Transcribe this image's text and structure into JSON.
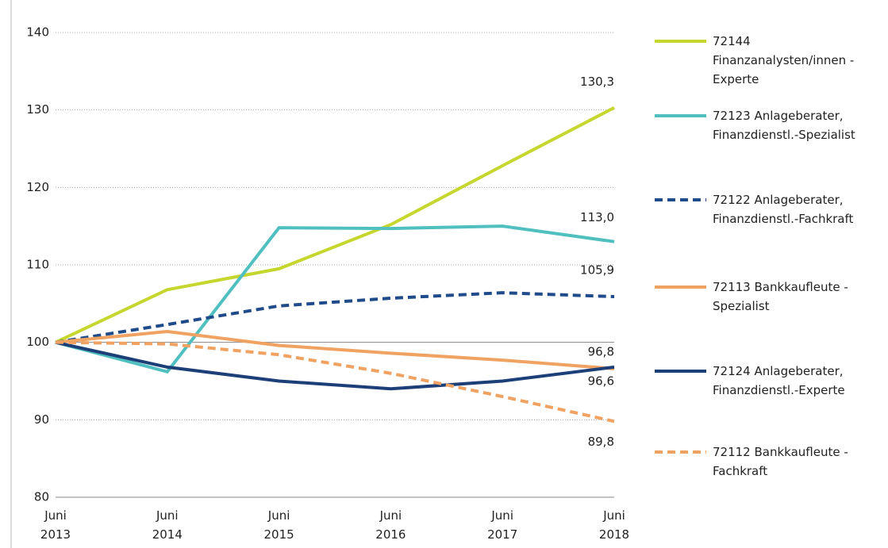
{
  "chart_data": {
    "type": "line",
    "categories": [
      "Juni 2013",
      "Juni 2014",
      "Juni 2015",
      "Juni 2016",
      "Juni 2017",
      "Juni 2018"
    ],
    "ylim": [
      80,
      140
    ],
    "yticks": [
      80,
      90,
      100,
      110,
      120,
      130,
      140
    ],
    "grid": true,
    "baseline": 100,
    "legend": "right",
    "series": [
      {
        "name": "72144 Finanzanalysten/innen - Experte",
        "color": "#c5d72f",
        "dashed": false,
        "values": [
          100,
          106.8,
          109.5,
          115.2,
          122.8,
          130.3
        ],
        "value_labels": [
          null,
          null,
          null,
          null,
          null,
          "130,3"
        ]
      },
      {
        "name": "72123 Anlageberater, Finanzdienstl.-Spezialist",
        "color": "#4fbfc0",
        "dashed": false,
        "values": [
          100,
          96.2,
          114.8,
          114.7,
          115.0,
          113.0
        ],
        "value_labels": [
          null,
          null,
          null,
          null,
          null,
          "113,0"
        ]
      },
      {
        "name": "72122 Anlageberater, Finanzdienstl.-Fachkraft",
        "color": "#1f4b8a",
        "dashed": true,
        "values": [
          100,
          102.3,
          104.7,
          105.7,
          106.4,
          105.9
        ],
        "value_labels": [
          null,
          null,
          null,
          null,
          null,
          "105,9"
        ]
      },
      {
        "name": "72113 Bankkaufleute - Spezialist",
        "color": "#f0a262",
        "dashed": false,
        "values": [
          100,
          101.4,
          99.6,
          98.6,
          97.7,
          96.6
        ],
        "value_labels": [
          null,
          null,
          null,
          null,
          null,
          "96,6"
        ]
      },
      {
        "name": "72124 Anlageberater, Finanzdienstl.-Experte",
        "color": "#1c3f78",
        "dashed": false,
        "values": [
          100,
          96.8,
          95.0,
          94.0,
          95.0,
          96.8
        ],
        "value_labels": [
          null,
          null,
          null,
          null,
          null,
          "96,8"
        ]
      },
      {
        "name": "72112 Bankkaufleute - Fachkraft",
        "color": "#f0a262",
        "dashed": true,
        "values": [
          100,
          99.8,
          98.4,
          96.0,
          93.0,
          89.8
        ],
        "value_labels": [
          null,
          null,
          null,
          null,
          null,
          "89,8"
        ]
      }
    ]
  }
}
